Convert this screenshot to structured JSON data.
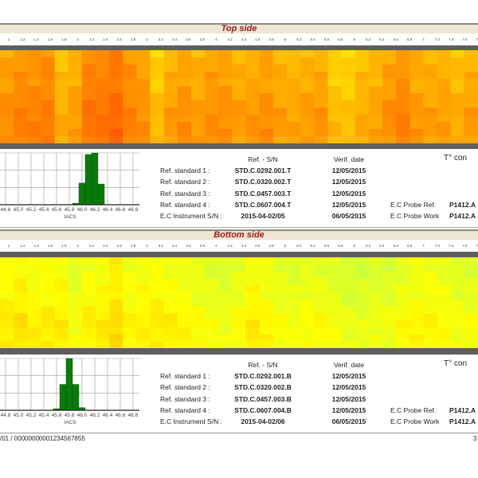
{
  "axis_ticks": [
    "1",
    "1.2",
    "1.4",
    "1.6",
    "1.8",
    "2",
    "2.2",
    "2.4",
    "2.6",
    "2.8",
    "3",
    "3.2",
    "3.4",
    "3.6",
    "3.8",
    "4",
    "4.2",
    "4.4",
    "4.6",
    "4.8",
    "5",
    "5.2",
    "5.4",
    "5.6",
    "5.8",
    "6",
    "6.2",
    "6.4",
    "6.6",
    "6.8",
    "7",
    "7.2",
    "7.4",
    "7.6",
    "7.8"
  ],
  "color_scale": {
    "values": [
      45.6,
      45.8,
      46.0,
      46.2,
      46.4
    ],
    "colors": [
      "#c8ff40",
      "#ffff00",
      "#ffc800",
      "#ff8c00",
      "#ff5a00"
    ]
  },
  "top": {
    "title": "Top side",
    "heatmap_column_means": [
      46.15,
      46.2,
      46.2,
      46.22,
      46.05,
      46.1,
      46.25,
      46.25,
      46.3,
      46.2,
      46.15,
      46.0,
      46.1,
      46.15,
      46.1,
      46.15,
      46.15,
      46.1,
      46.12,
      46.15,
      46.1,
      46.08,
      46.1,
      46.12,
      46.0,
      45.98,
      46.05,
      46.08,
      46.15,
      46.2,
      46.12,
      46.1,
      46.1,
      46.05,
      46.1
    ],
    "heatmap_row_offsets": [
      -0.05,
      -0.03,
      -0.02,
      0,
      -0.02,
      0,
      0.02,
      0.03,
      0.05,
      0.04,
      0.05,
      0.06,
      0.03
    ],
    "histogram": {
      "xlabel": "IACS",
      "ticks": [
        "44.8",
        "45.0",
        "45.2",
        "45.4",
        "45.6",
        "45.8",
        "46.0",
        "46.2",
        "46.4",
        "46.6",
        "46.8"
      ],
      "bins": [
        {
          "center": 45.9,
          "value": 3
        },
        {
          "center": 46.0,
          "value": 42
        },
        {
          "center": 46.1,
          "value": 97
        },
        {
          "center": 46.2,
          "value": 100
        },
        {
          "center": 46.3,
          "value": 40
        }
      ]
    },
    "info": {
      "col_sn": "Ref. - S/N",
      "col_date": "Verif. date",
      "temp_label": "T° con",
      "rows": [
        {
          "label": "Ref. standard 1 :",
          "sn": "STD.C.0292.001.T",
          "date": "12/05/2015"
        },
        {
          "label": "Ref. standard 2 :",
          "sn": "STD.C.0320.002.T",
          "date": "12/05/2015"
        },
        {
          "label": "Ref. standard 3 :",
          "sn": "STD.C.0457.003.T",
          "date": "12/05/2015"
        },
        {
          "label": "Ref. standard 4 :",
          "sn": "STD.C.0607.004.T",
          "date": "12/05/2015"
        },
        {
          "label": "E.C Instrument S/N :",
          "sn": "2015-04-02/05",
          "date": "06/05/2015"
        }
      ],
      "probe_ref_label": "E.C Probe Ref.",
      "probe_ref": "P1412.A",
      "probe_work_label": "E.C Probe Work",
      "probe_work": "P1412.A"
    }
  },
  "bottom": {
    "title": "Bottom side",
    "heatmap_column_means": [
      45.82,
      45.85,
      45.8,
      45.82,
      45.82,
      45.72,
      45.8,
      45.82,
      45.88,
      45.78,
      45.8,
      45.82,
      45.8,
      45.78,
      45.75,
      45.72,
      45.7,
      45.75,
      45.82,
      45.78,
      45.74,
      45.72,
      45.75,
      45.75,
      45.72,
      45.68,
      45.68,
      45.7,
      45.7,
      45.75,
      45.78,
      45.78,
      45.76,
      45.72,
      45.72
    ],
    "heatmap_row_offsets": [
      -0.02,
      -0.05,
      -0.04,
      -0.02,
      0,
      -0.02,
      0,
      0.02,
      0.05,
      0.06,
      0.04,
      0.05,
      0.03
    ],
    "histogram": {
      "xlabel": "IACS",
      "ticks": [
        "44.8",
        "45.0",
        "45.2",
        "45.4",
        "45.6",
        "45.8",
        "46.0",
        "46.2",
        "46.4",
        "46.6",
        "46.8"
      ],
      "bins": [
        {
          "center": 45.6,
          "value": 3
        },
        {
          "center": 45.7,
          "value": 50
        },
        {
          "center": 45.8,
          "value": 100
        },
        {
          "center": 45.9,
          "value": 50
        },
        {
          "center": 46.0,
          "value": 5
        }
      ]
    },
    "info": {
      "col_sn": "Ref. - S/N",
      "col_date": "Verif. date",
      "temp_label": "T° con",
      "rows": [
        {
          "label": "Ref. standard 1 :",
          "sn": "STD.C.0292.001.B",
          "date": "12/05/2015"
        },
        {
          "label": "Ref. standard 2 :",
          "sn": "STD.C.0320.002.B",
          "date": "12/05/2015"
        },
        {
          "label": "Ref. standard 3 :",
          "sn": "STD.C.0457.003.B",
          "date": "12/05/2015"
        },
        {
          "label": "Ref. standard 4 :",
          "sn": "STD.C.0607.004.B",
          "date": "12/05/2015"
        },
        {
          "label": "E.C Instrument S/N :",
          "sn": "2015-04-02/06",
          "date": "06/05/2015"
        }
      ],
      "probe_ref_label": "E.C Probe Ref.",
      "probe_ref": "P1412.A",
      "probe_work_label": "E.C Probe Work",
      "probe_work": "P1412.A"
    }
  },
  "footer": {
    "left": "/01 / 00000000001234567855",
    "page": "3"
  }
}
